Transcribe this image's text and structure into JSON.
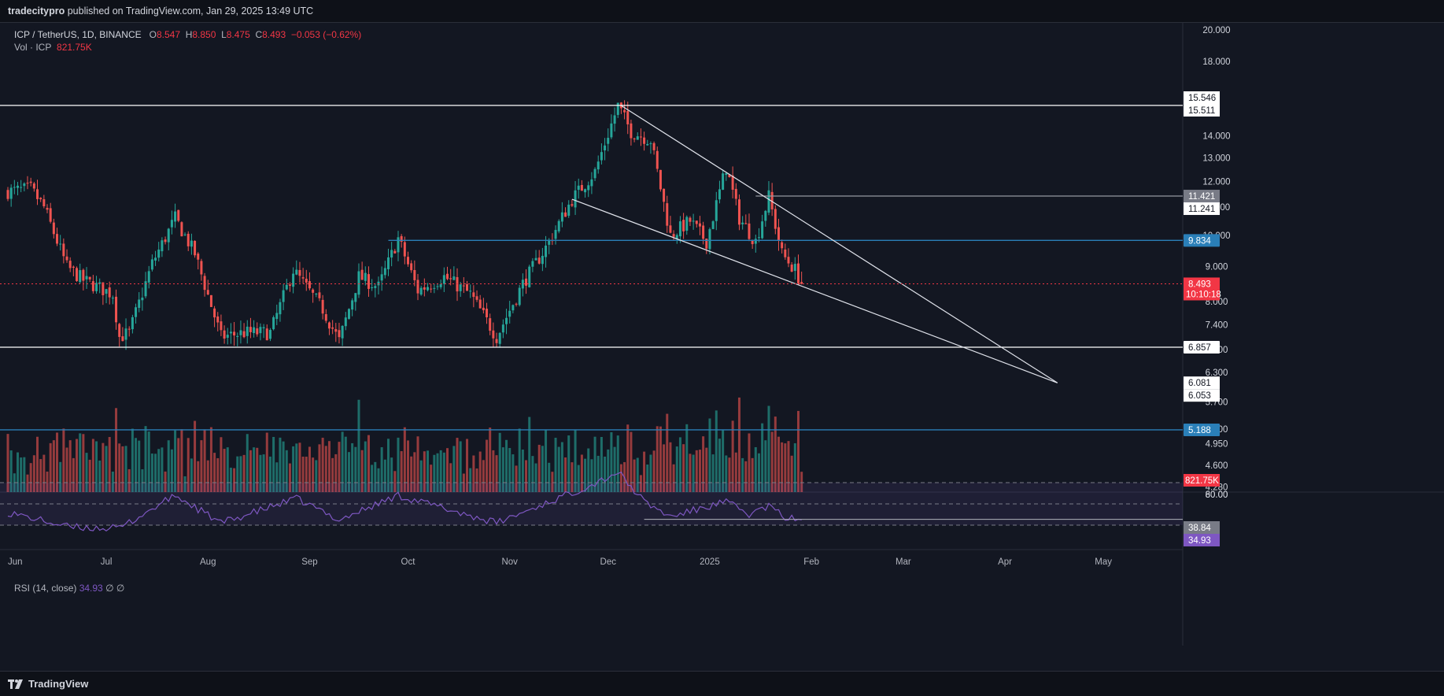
{
  "header": {
    "publisher": "tradecitypro",
    "published_text": "published on TradingView.com, Jan 29, 2025 13:49 UTC"
  },
  "legend": {
    "symbol": "ICP / TetherUS, 1D, BINANCE",
    "o_label": "O",
    "o_value": "8.547",
    "h_label": "H",
    "h_value": "8.850",
    "l_label": "L",
    "l_value": "8.475",
    "c_label": "C",
    "c_value": "8.493",
    "change": "−0.053 (−0.62%)",
    "vol_label": "Vol · ICP",
    "vol_value": "821.75K"
  },
  "rsi_legend": {
    "label": "RSI (14, close)",
    "value": "34.93",
    "extra": "∅ ∅"
  },
  "footer": {
    "brand": "TradingView"
  },
  "colors": {
    "background": "#131722",
    "up": "#26a69a",
    "down": "#ef5350",
    "blue_line": "#2a7fb8",
    "rsi": "#7e57c2",
    "price_tag": "#f23645"
  },
  "chart_data": {
    "type": "candlestick",
    "symbol": "ICP / TetherUS",
    "timeframe": "1D",
    "exchange": "BINANCE",
    "y_scale": "log",
    "price_ticks": [
      "20.000",
      "18.000",
      "14.000",
      "13.000",
      "12.000",
      "11.000",
      "10.000",
      "9.000",
      "8.000",
      "7.400",
      "6.800",
      "6.300",
      "5.700",
      "5.200",
      "4.950",
      "4.600",
      "4.280"
    ],
    "x_ticks": [
      {
        "label": "Jun",
        "date": "2024-06-01"
      },
      {
        "label": "Jul",
        "date": "2024-07-01"
      },
      {
        "label": "Aug",
        "date": "2024-08-01"
      },
      {
        "label": "Sep",
        "date": "2024-09-01"
      },
      {
        "label": "Oct",
        "date": "2024-10-01"
      },
      {
        "label": "Nov",
        "date": "2024-11-01"
      },
      {
        "label": "Dec",
        "date": "2024-12-01"
      },
      {
        "label": "2025",
        "date": "2025-01-01"
      },
      {
        "label": "Feb",
        "date": "2025-02-01"
      },
      {
        "label": "Mar",
        "date": "2025-03-01"
      },
      {
        "label": "Apr",
        "date": "2025-04-01"
      },
      {
        "label": "May",
        "date": "2025-05-01"
      }
    ],
    "start_date": "2024-06-01",
    "end_date": "2025-01-29",
    "key_points": [
      {
        "date": "2024-06-01",
        "price": 11.6
      },
      {
        "date": "2024-06-08",
        "price": 11.7
      },
      {
        "date": "2024-06-12",
        "price": 11.0
      },
      {
        "date": "2024-06-19",
        "price": 9.0
      },
      {
        "date": "2024-06-24",
        "price": 8.6
      },
      {
        "date": "2024-07-03",
        "price": 8.2
      },
      {
        "date": "2024-07-05",
        "price": 7.1
      },
      {
        "date": "2024-07-08",
        "price": 7.2
      },
      {
        "date": "2024-07-15",
        "price": 9.1
      },
      {
        "date": "2024-07-22",
        "price": 10.6
      },
      {
        "date": "2024-07-28",
        "price": 9.4
      },
      {
        "date": "2024-08-05",
        "price": 7.1
      },
      {
        "date": "2024-08-12",
        "price": 7.2
      },
      {
        "date": "2024-08-20",
        "price": 7.2
      },
      {
        "date": "2024-08-27",
        "price": 8.9
      },
      {
        "date": "2024-09-05",
        "price": 7.8
      },
      {
        "date": "2024-09-10",
        "price": 7.0
      },
      {
        "date": "2024-09-16",
        "price": 8.7
      },
      {
        "date": "2024-09-22",
        "price": 8.4
      },
      {
        "date": "2024-09-28",
        "price": 9.9
      },
      {
        "date": "2024-10-04",
        "price": 8.3
      },
      {
        "date": "2024-10-12",
        "price": 8.7
      },
      {
        "date": "2024-10-20",
        "price": 8.2
      },
      {
        "date": "2024-10-28",
        "price": 7.1
      },
      {
        "date": "2024-11-05",
        "price": 8.5
      },
      {
        "date": "2024-11-12",
        "price": 9.6
      },
      {
        "date": "2024-11-20",
        "price": 11.3
      },
      {
        "date": "2024-11-27",
        "price": 12.4
      },
      {
        "date": "2024-12-04",
        "price": 15.5
      },
      {
        "date": "2024-12-08",
        "price": 14.2
      },
      {
        "date": "2024-12-14",
        "price": 13.8
      },
      {
        "date": "2024-12-20",
        "price": 10.0
      },
      {
        "date": "2024-12-26",
        "price": 10.5
      },
      {
        "date": "2024-12-31",
        "price": 9.8
      },
      {
        "date": "2025-01-06",
        "price": 12.6
      },
      {
        "date": "2025-01-10",
        "price": 10.6
      },
      {
        "date": "2025-01-15",
        "price": 9.8
      },
      {
        "date": "2025-01-19",
        "price": 11.4
      },
      {
        "date": "2025-01-23",
        "price": 9.4
      },
      {
        "date": "2025-01-27",
        "price": 8.9
      },
      {
        "date": "2025-01-29",
        "price": 8.493
      }
    ],
    "last": {
      "open": 8.547,
      "high": 8.85,
      "low": 8.475,
      "close": 8.493
    },
    "horizontal_levels": [
      {
        "price": 15.546,
        "label": "15.546",
        "color": "#ffffff"
      },
      {
        "price": 15.511,
        "label": "15.511",
        "color": "#ffffff"
      },
      {
        "price": 11.421,
        "label": "11.421",
        "color": "#9598a1",
        "start": "2025-01-15"
      },
      {
        "price": 11.241,
        "label": "11.241",
        "color": "#ffffff"
      },
      {
        "price": 9.834,
        "label": "9.834",
        "color": "#2a7fb8",
        "start": "2024-09-25"
      },
      {
        "price": 6.857,
        "label": "6.857",
        "color": "#ffffff"
      },
      {
        "price": 6.081,
        "label": "6.081",
        "color": "#ffffff"
      },
      {
        "price": 6.053,
        "label": "6.053",
        "color": "#ffffff"
      },
      {
        "price": 5.188,
        "label": "5.188",
        "color": "#2a7fb8"
      }
    ],
    "trendlines": [
      {
        "from": {
          "date": "2024-12-05",
          "price": 15.5
        },
        "to": {
          "date": "2025-04-17",
          "price": 6.08
        }
      },
      {
        "from": {
          "date": "2024-11-20",
          "price": 11.3
        },
        "to": {
          "date": "2025-04-17",
          "price": 6.08
        }
      }
    ],
    "price_tag": {
      "value": "8.493",
      "countdown": "10:10:18"
    },
    "volume_tag": "821.75K",
    "rsi": {
      "period": 14,
      "value": 34.93,
      "tags": [
        "38.84",
        "34.93"
      ],
      "ticks": [
        "80.00",
        "60.00"
      ],
      "bands": [
        70,
        50,
        30
      ],
      "support_line": 35.5,
      "key_points": [
        {
          "date": "2024-06-01",
          "value": 42
        },
        {
          "date": "2024-06-20",
          "value": 28
        },
        {
          "date": "2024-07-05",
          "value": 27
        },
        {
          "date": "2024-07-22",
          "value": 58
        },
        {
          "date": "2024-08-05",
          "value": 32
        },
        {
          "date": "2024-08-28",
          "value": 55
        },
        {
          "date": "2024-09-10",
          "value": 35
        },
        {
          "date": "2024-09-28",
          "value": 58
        },
        {
          "date": "2024-10-28",
          "value": 32
        },
        {
          "date": "2024-11-26",
          "value": 68
        },
        {
          "date": "2024-12-04",
          "value": 80
        },
        {
          "date": "2024-12-12",
          "value": 52
        },
        {
          "date": "2024-12-20",
          "value": 38
        },
        {
          "date": "2025-01-06",
          "value": 52
        },
        {
          "date": "2025-01-13",
          "value": 40
        },
        {
          "date": "2025-01-19",
          "value": 48
        },
        {
          "date": "2025-01-24",
          "value": 37
        },
        {
          "date": "2025-01-29",
          "value": 34.93
        }
      ]
    }
  }
}
